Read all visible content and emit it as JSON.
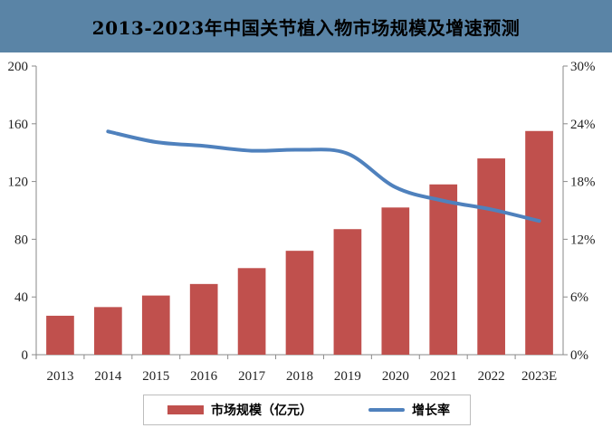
{
  "title": "2013-2023年中国关节植入物市场规模及增速预测",
  "chart_data": {
    "type": "bar",
    "categories": [
      "2013",
      "2014",
      "2015",
      "2016",
      "2017",
      "2018",
      "2019",
      "2020",
      "2021",
      "2022",
      "2023E"
    ],
    "series": [
      {
        "name": "市场规模（亿元）",
        "type": "bar",
        "axis": "left",
        "color": "#c0504d",
        "values": [
          27,
          33,
          41,
          49,
          60,
          72,
          87,
          102,
          118,
          136,
          155
        ]
      },
      {
        "name": "增长率",
        "type": "line",
        "axis": "right",
        "color": "#4f81bd",
        "values": [
          null,
          23.2,
          22.1,
          21.7,
          21.2,
          21.3,
          20.9,
          17.4,
          16.0,
          15.1,
          13.9
        ]
      }
    ],
    "y_left": {
      "min": 0,
      "max": 200,
      "ticks": [
        0,
        40,
        80,
        120,
        160,
        200
      ]
    },
    "y_right": {
      "min": 0,
      "max": 30,
      "ticks": [
        "0%",
        "6%",
        "12%",
        "18%",
        "24%",
        "30%"
      ]
    },
    "legend_position": "bottom",
    "grid": false
  }
}
